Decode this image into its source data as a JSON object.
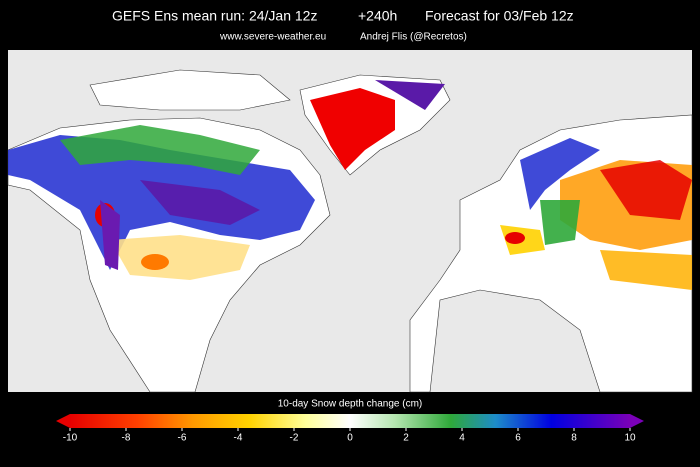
{
  "header": {
    "model": "GEFS Ens mean  run: 24/Jan 12z",
    "lead": "+240h",
    "valid": "Forecast for 03/Feb 12z",
    "site": "www.severe-weather.eu",
    "author": "Andrej Flis (@Recretos)"
  },
  "colorbar": {
    "title": "10-day Snow depth change (cm)",
    "ticks": [
      -10,
      -8,
      -6,
      -4,
      -2,
      0,
      2,
      4,
      6,
      8,
      10
    ]
  }
}
